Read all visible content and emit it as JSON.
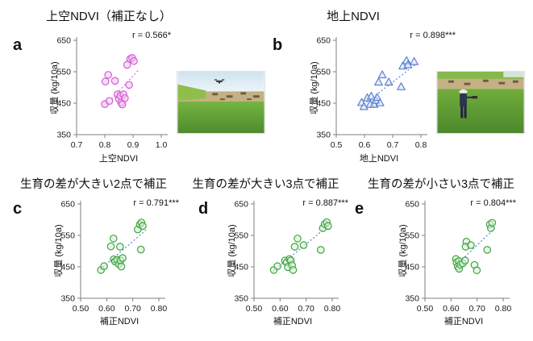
{
  "figure_bg": "#ffffff",
  "axis_color": "#7f7f7f",
  "photos": [
    {
      "name": "drone-flying-over-rice-field"
    },
    {
      "name": "person-measuring-ndvi-in-rice-field"
    }
  ],
  "chart_data": [
    {
      "panel_label": "a",
      "type": "scatter",
      "title": "上空NDVI（補正なし）",
      "r_label": "r = 0.566*",
      "xlabel": "上空NDVI",
      "ylabel": "収量 (kg/10a)",
      "xlim": [
        0.7,
        1.0
      ],
      "ylim": [
        350,
        650
      ],
      "xticks": [
        "0.7",
        "0.8",
        "0.9",
        "1.0"
      ],
      "yticks": [
        "350",
        "450",
        "550",
        "650"
      ],
      "marker": "circle",
      "marker_color": "#d45bd4",
      "marker_fill": "#f2c7f2",
      "trend_color": "#e07ae0",
      "trend": [
        [
          0.824,
          463
        ],
        [
          0.921,
          557
        ]
      ],
      "points": [
        [
          0.8,
          447
        ],
        [
          0.802,
          519
        ],
        [
          0.812,
          540
        ],
        [
          0.816,
          457
        ],
        [
          0.836,
          521
        ],
        [
          0.845,
          478
        ],
        [
          0.85,
          464
        ],
        [
          0.855,
          473
        ],
        [
          0.858,
          452
        ],
        [
          0.862,
          446
        ],
        [
          0.866,
          478
        ],
        [
          0.871,
          466
        ],
        [
          0.879,
          572
        ],
        [
          0.886,
          508
        ],
        [
          0.89,
          591
        ],
        [
          0.897,
          594
        ],
        [
          0.903,
          584
        ]
      ]
    },
    {
      "panel_label": "b",
      "type": "scatter",
      "title": "地上NDVI",
      "r_label": "r = 0.898***",
      "xlabel": "地上NDVI",
      "ylabel": "収量 (kg/10a)",
      "xlim": [
        0.5,
        0.8
      ],
      "ylim": [
        350,
        650
      ],
      "xticks": [
        "0.5",
        "0.6",
        "0.7",
        "0.8"
      ],
      "yticks": [
        "350",
        "450",
        "550",
        "650"
      ],
      "marker": "triangle",
      "marker_color": "#5d82d1",
      "marker_fill": "#cfe0f7",
      "trend_color": "#6f96d6",
      "trend": [
        [
          0.597,
          446
        ],
        [
          0.781,
          573
        ]
      ],
      "points": [
        [
          0.59,
          452
        ],
        [
          0.598,
          439
        ],
        [
          0.61,
          467
        ],
        [
          0.62,
          446
        ],
        [
          0.624,
          472
        ],
        [
          0.634,
          446
        ],
        [
          0.64,
          459
        ],
        [
          0.645,
          468
        ],
        [
          0.65,
          517
        ],
        [
          0.655,
          451
        ],
        [
          0.663,
          540
        ],
        [
          0.686,
          517
        ],
        [
          0.73,
          502
        ],
        [
          0.736,
          568
        ],
        [
          0.749,
          585
        ],
        [
          0.754,
          572
        ],
        [
          0.776,
          582
        ]
      ]
    },
    {
      "panel_label": "c",
      "type": "scatter",
      "title": "生育の差が大きい2点で補正",
      "r_label": "r = 0.791***",
      "xlabel": "補正NDVI",
      "ylabel": "収量 (kg/10a)",
      "xlim": [
        0.5,
        0.8
      ],
      "ylim": [
        350,
        650
      ],
      "xticks": [
        "0.50",
        "0.60",
        "0.70",
        "0.80"
      ],
      "yticks": [
        "350",
        "450",
        "550",
        "650"
      ],
      "marker": "circle",
      "marker_color": "#3fa23f",
      "marker_fill": "#d9f2d9",
      "trend_color": "#6f96d6",
      "trend": [
        [
          0.574,
          441
        ],
        [
          0.752,
          568
        ]
      ],
      "points": [
        [
          0.578,
          440
        ],
        [
          0.59,
          452
        ],
        [
          0.616,
          515
        ],
        [
          0.626,
          540
        ],
        [
          0.627,
          474
        ],
        [
          0.632,
          467
        ],
        [
          0.64,
          472
        ],
        [
          0.646,
          459
        ],
        [
          0.651,
          514
        ],
        [
          0.653,
          470
        ],
        [
          0.656,
          451
        ],
        [
          0.661,
          478
        ],
        [
          0.719,
          569
        ],
        [
          0.727,
          585
        ],
        [
          0.733,
          591
        ],
        [
          0.738,
          580
        ],
        [
          0.731,
          505
        ]
      ]
    },
    {
      "panel_label": "d",
      "type": "scatter",
      "title": "生育の差が大きい3点で補正",
      "r_label": "r = 0.887***",
      "xlabel": "補正NDVI",
      "ylabel": "収量 (kg/10a)",
      "xlim": [
        0.5,
        0.8
      ],
      "ylim": [
        350,
        650
      ],
      "xticks": [
        "0.50",
        "0.60",
        "0.70",
        "0.80"
      ],
      "yticks": [
        "350",
        "450",
        "550",
        "650"
      ],
      "marker": "circle",
      "marker_color": "#3fa23f",
      "marker_fill": "#d9f2d9",
      "trend_color": "#6f96d6",
      "trend": [
        [
          0.573,
          436
        ],
        [
          0.79,
          584
        ]
      ],
      "points": [
        [
          0.576,
          440
        ],
        [
          0.59,
          452
        ],
        [
          0.619,
          470
        ],
        [
          0.625,
          464
        ],
        [
          0.63,
          449
        ],
        [
          0.636,
          475
        ],
        [
          0.641,
          470
        ],
        [
          0.646,
          455
        ],
        [
          0.65,
          440
        ],
        [
          0.656,
          514
        ],
        [
          0.667,
          540
        ],
        [
          0.69,
          519
        ],
        [
          0.756,
          504
        ],
        [
          0.764,
          573
        ],
        [
          0.771,
          586
        ],
        [
          0.779,
          592
        ],
        [
          0.784,
          580
        ]
      ]
    },
    {
      "panel_label": "e",
      "type": "scatter",
      "title": "生育の差が小さい3点で補正",
      "r_label": "r = 0.804***",
      "xlabel": "補正NDVI",
      "ylabel": "収量 (kg/10a)",
      "xlim": [
        0.5,
        0.8
      ],
      "ylim": [
        350,
        650
      ],
      "xticks": [
        "0.50",
        "0.60",
        "0.70",
        "0.80"
      ],
      "yticks": [
        "350",
        "450",
        "550",
        "650"
      ],
      "marker": "circle",
      "marker_color": "#3fa23f",
      "marker_fill": "#d9f2d9",
      "trend_color": "#6f96d6",
      "trend": [
        [
          0.622,
          457
        ],
        [
          0.768,
          573
        ]
      ],
      "points": [
        [
          0.619,
          475
        ],
        [
          0.621,
          464
        ],
        [
          0.626,
          451
        ],
        [
          0.63,
          468
        ],
        [
          0.631,
          444
        ],
        [
          0.636,
          457
        ],
        [
          0.645,
          461
        ],
        [
          0.654,
          470
        ],
        [
          0.659,
          530
        ],
        [
          0.656,
          514
        ],
        [
          0.676,
          519
        ],
        [
          0.69,
          456
        ],
        [
          0.699,
          439
        ],
        [
          0.739,
          504
        ],
        [
          0.749,
          585
        ],
        [
          0.753,
          573
        ],
        [
          0.758,
          590
        ]
      ]
    }
  ]
}
